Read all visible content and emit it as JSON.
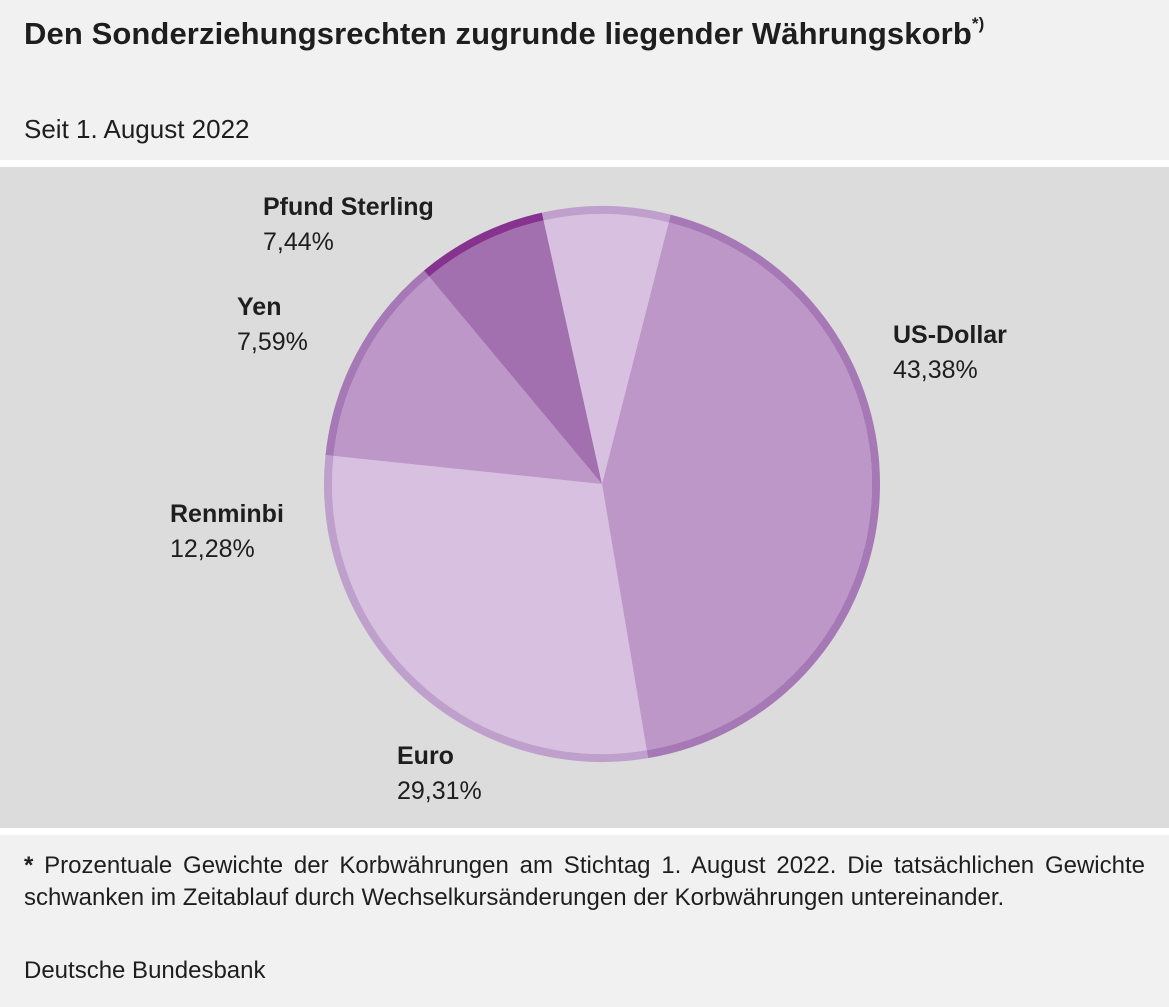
{
  "title": "Den Sonderziehungsrechten zugrunde liegender Währungskorb",
  "title_marker": "*)",
  "subtitle": "Seit 1. August 2022",
  "chart_data": {
    "type": "pie",
    "slices": [
      {
        "label": "US-Dollar",
        "value": 43.38,
        "value_text": "43,38%",
        "fill": "#bc97c7",
        "rim": "#a678b6"
      },
      {
        "label": "Euro",
        "value": 29.31,
        "value_text": "29,31%",
        "fill": "#d7c0e0",
        "rim": "#bf9fcc"
      },
      {
        "label": "Renminbi",
        "value": 12.28,
        "value_text": "12,28%",
        "fill": "#bc97c7",
        "rim": "#a678b6"
      },
      {
        "label": "Yen",
        "value": 7.59,
        "value_text": "7,59%",
        "fill": "#a270ae",
        "rim": "#86338f"
      },
      {
        "label": "Pfund Sterling",
        "value": 7.44,
        "value_text": "7,44%",
        "fill": "#d7c0e0",
        "rim": "#bf9fcc"
      }
    ]
  },
  "footnote": {
    "marker": "*",
    "text": "Prozentuale Gewichte der Korbwährungen am Stichtag 1. August 2022. Die tatsächlichen Gewichte schwanken im Zeitablauf durch Wechselkursänderungen der Korbwährungen untereinander."
  },
  "source": "Deutsche Bundesbank"
}
